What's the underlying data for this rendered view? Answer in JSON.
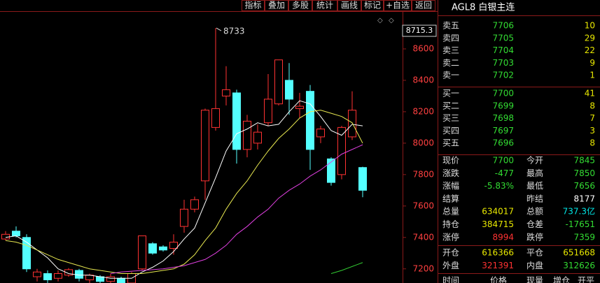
{
  "toolbar": [
    "指标",
    "叠加",
    "多股",
    "统计",
    "画线",
    "标记",
    "+自选",
    "返回"
  ],
  "chart_data": {
    "type": "candlestick",
    "ylim": [
      7110,
      8840
    ],
    "yticks": [
      7200,
      7400,
      7600,
      7800,
      8000,
      8200,
      8400,
      8600
    ],
    "cursor_value": 8715.3,
    "annotations": [
      {
        "text": "8733",
        "value": 8733
      }
    ],
    "up_color": "#ff3232",
    "down_color": "#54ffff",
    "open": [
      7390,
      7440,
      7400,
      7150,
      7170,
      7140,
      7160,
      7190,
      7130,
      7150,
      7120,
      7140,
      7110,
      7200,
      7360,
      7340,
      7330,
      7470,
      7580,
      7760,
      8100,
      8300,
      8320,
      7960,
      8000,
      8130,
      8250,
      8400,
      8220,
      8330,
      8040,
      7900,
      7800,
      8040,
      7845
    ],
    "high": [
      7440,
      7470,
      7420,
      7200,
      7190,
      7190,
      7205,
      7200,
      7170,
      7160,
      7170,
      7150,
      7180,
      7410,
      7370,
      7350,
      7420,
      7640,
      7660,
      8220,
      8733,
      8490,
      8340,
      8180,
      8120,
      8440,
      8530,
      8510,
      8320,
      8370,
      8110,
      7910,
      8110,
      8330,
      7850
    ],
    "low": [
      7380,
      7400,
      7180,
      7120,
      7100,
      7120,
      7150,
      7120,
      7110,
      7100,
      7110,
      7090,
      7100,
      7190,
      7290,
      7310,
      7290,
      7430,
      7560,
      7640,
      8080,
      8240,
      7870,
      7910,
      7960,
      8110,
      8240,
      8180,
      8160,
      7830,
      8000,
      7730,
      7770,
      8020,
      7656
    ],
    "close": [
      7420,
      7410,
      7200,
      7180,
      7130,
      7170,
      7195,
      7140,
      7160,
      7120,
      7150,
      7110,
      7170,
      7410,
      7300,
      7320,
      7370,
      7580,
      7640,
      8210,
      8220,
      8340,
      7960,
      8140,
      8070,
      8280,
      8530,
      8280,
      8235,
      7960,
      8090,
      7750,
      8100,
      8210,
      7700
    ],
    "series": [
      {
        "color": "#ffffff",
        "values": [
          7400,
          7410,
          7370,
          7320,
          7270,
          7200,
          7170,
          7160,
          7160,
          7150,
          7140,
          7140,
          7140,
          7180,
          7210,
          7250,
          7310,
          7390,
          7460,
          7620,
          7780,
          7950,
          8060,
          8090,
          8130,
          8110,
          8120,
          8200,
          8270,
          8250,
          8170,
          8080,
          8050,
          8120,
          8110
        ]
      },
      {
        "color": "#e8e850",
        "values": [
          7380,
          7370,
          7350,
          7320,
          7290,
          7260,
          7240,
          7220,
          7200,
          7190,
          7180,
          7170,
          7170,
          7170,
          7180,
          7190,
          7200,
          7230,
          7290,
          7380,
          7460,
          7580,
          7680,
          7760,
          7860,
          7950,
          8030,
          8090,
          8160,
          8200,
          8210,
          8190,
          8170,
          8130,
          8000
        ]
      },
      {
        "color": "#e040e0",
        "values": [
          null,
          null,
          null,
          null,
          null,
          null,
          null,
          null,
          null,
          null,
          7170,
          7180,
          7185,
          7190,
          7195,
          7200,
          7210,
          7220,
          7240,
          7260,
          7300,
          7350,
          7420,
          7470,
          7530,
          7580,
          7650,
          7700,
          7740,
          7790,
          7830,
          7880,
          7930,
          7960,
          7990
        ]
      },
      {
        "color": "#33cc33",
        "values": [
          null,
          null,
          null,
          null,
          null,
          null,
          null,
          null,
          null,
          null,
          null,
          null,
          null,
          null,
          null,
          null,
          null,
          null,
          null,
          null,
          null,
          null,
          null,
          null,
          null,
          null,
          null,
          null,
          null,
          null,
          null,
          7170,
          7190,
          7215,
          7240
        ]
      }
    ]
  },
  "quote": {
    "title": "AGL8 白银主连",
    "price_color": "#33dd33",
    "volume_color": "#e8e800",
    "asks": [
      {
        "label": "卖五",
        "price": "7706",
        "volume": "10"
      },
      {
        "label": "卖四",
        "price": "7705",
        "volume": "29"
      },
      {
        "label": "卖三",
        "price": "7704",
        "volume": "22"
      },
      {
        "label": "卖二",
        "price": "7703",
        "volume": "9"
      },
      {
        "label": "卖一",
        "price": "7702",
        "volume": "1"
      }
    ],
    "bids": [
      {
        "label": "买一",
        "price": "7700",
        "volume": "41"
      },
      {
        "label": "买二",
        "price": "7699",
        "volume": "8"
      },
      {
        "label": "买三",
        "price": "7698",
        "volume": "7"
      },
      {
        "label": "买四",
        "price": "7697",
        "volume": "3"
      },
      {
        "label": "买五",
        "price": "7696",
        "volume": "8"
      }
    ],
    "stats": [
      {
        "label": "现价",
        "value": "7700",
        "color": "#33dd33"
      },
      {
        "label": "今开",
        "value": "7845",
        "color": "#33dd33"
      },
      {
        "label": "涨跌",
        "value": "-477",
        "color": "#33dd33"
      },
      {
        "label": "最高",
        "value": "7850",
        "color": "#33dd33"
      },
      {
        "label": "涨幅",
        "value": "-5.83%",
        "color": "#33dd33"
      },
      {
        "label": "最低",
        "value": "7656",
        "color": "#33dd33"
      },
      {
        "label": "结算"
      },
      {
        "label": "昨结",
        "value": "8177",
        "color": "#ffffff"
      },
      {
        "label": "总量",
        "value": "634017",
        "color": "#e8e800"
      },
      {
        "label": "总额",
        "value": "737.3亿",
        "color": "#00e5e5"
      },
      {
        "label": "持仓",
        "value": "384715",
        "color": "#e8e800"
      },
      {
        "label": "仓差",
        "value": "-17651",
        "color": "#33dd33"
      },
      {
        "label": "涨停",
        "value": "8994",
        "color": "#ff3232"
      },
      {
        "label": "跌停",
        "value": "7359",
        "color": "#33dd33"
      }
    ],
    "flow": [
      {
        "label": "开仓",
        "value": "616366",
        "color": "#e8e800"
      },
      {
        "label": "平仓",
        "value": "651668",
        "color": "#e8e800"
      },
      {
        "label": "外盘",
        "value": "321391",
        "color": "#ff3232"
      },
      {
        "label": "内盘",
        "value": "312626",
        "color": "#33dd33"
      }
    ],
    "tape_headers": [
      "时间",
      "价格",
      "现量",
      "增仓",
      "开平"
    ]
  }
}
